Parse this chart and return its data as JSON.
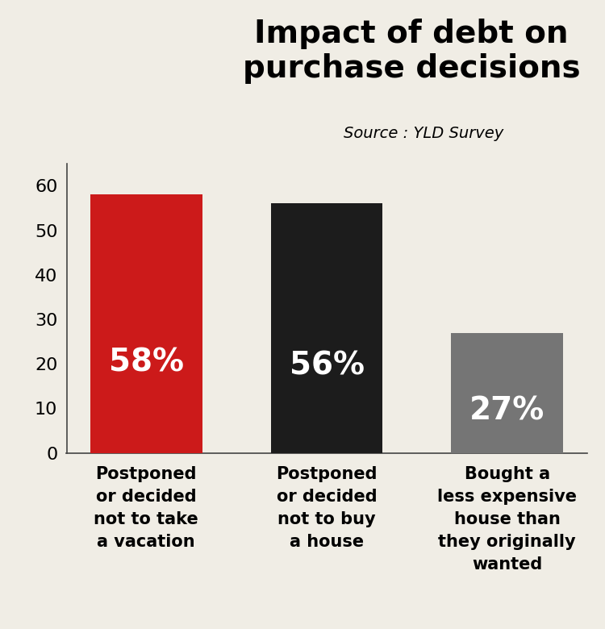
{
  "title": "Impact of debt on\npurchase decisions",
  "source": "Source : YLD Survey",
  "categories": [
    "Postponed\nor decided\nnot to take\na vacation",
    "Postponed\nor decided\nnot to buy\na house",
    "Bought a\nless expensive\nhouse than\nthey originally\nwanted"
  ],
  "values": [
    58,
    56,
    27
  ],
  "bar_colors": [
    "#cc1a1a",
    "#1c1c1c",
    "#757575"
  ],
  "bar_labels": [
    "58%",
    "56%",
    "27%"
  ],
  "label_color": "#ffffff",
  "ylim": [
    0,
    65
  ],
  "yticks": [
    0,
    10,
    20,
    30,
    40,
    50,
    60
  ],
  "background_color": "#f0ede5",
  "title_fontsize": 28,
  "source_fontsize": 14,
  "label_fontsize": 28,
  "tick_fontsize": 16,
  "xlabel_fontsize": 15
}
